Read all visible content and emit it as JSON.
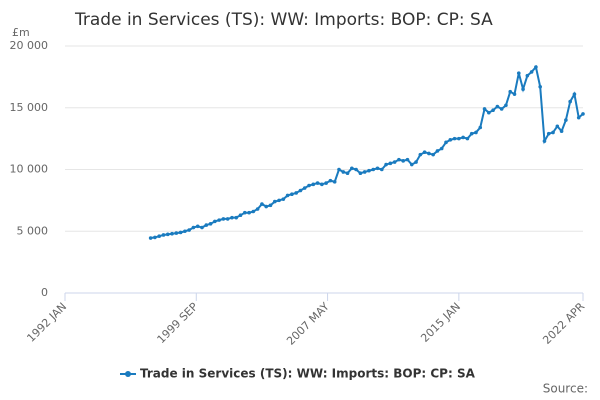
{
  "chart_data": {
    "type": "line",
    "title": "Trade in Services (TS): WW: Imports: BOP: CP: SA",
    "ylabel": "£m",
    "source": "Source:",
    "x": [
      1997,
      1997.25,
      1997.5,
      1997.75,
      1998,
      1998.25,
      1998.5,
      1998.75,
      1999,
      1999.25,
      1999.5,
      1999.75,
      2000,
      2000.25,
      2000.5,
      2000.75,
      2001,
      2001.25,
      2001.5,
      2001.75,
      2002,
      2002.25,
      2002.5,
      2002.75,
      2003,
      2003.25,
      2003.5,
      2003.75,
      2004,
      2004.25,
      2004.5,
      2004.75,
      2005,
      2005.25,
      2005.5,
      2005.75,
      2006,
      2006.25,
      2006.5,
      2006.75,
      2007,
      2007.25,
      2007.5,
      2007.75,
      2008,
      2008.25,
      2008.5,
      2008.75,
      2009,
      2009.25,
      2009.5,
      2009.75,
      2010,
      2010.25,
      2010.5,
      2010.75,
      2011,
      2011.25,
      2011.5,
      2011.75,
      2012,
      2012.25,
      2012.5,
      2012.75,
      2013,
      2013.25,
      2013.5,
      2013.75,
      2014,
      2014.25,
      2014.5,
      2014.75,
      2015,
      2015.25,
      2015.5,
      2015.75,
      2016,
      2016.25,
      2016.5,
      2016.75,
      2017,
      2017.25,
      2017.5,
      2017.75,
      2018,
      2018.25,
      2018.5,
      2018.75,
      2019,
      2019.25,
      2019.5,
      2019.75,
      2020,
      2020.25,
      2020.5,
      2020.75,
      2021,
      2021.25,
      2021.5,
      2021.75,
      2022,
      2022.25
    ],
    "series": [
      {
        "name": "Trade in Services (TS): WW: Imports: BOP: CP: SA",
        "color": "#1a7bbf",
        "values": [
          4450,
          4500,
          4600,
          4700,
          4750,
          4800,
          4850,
          4900,
          5000,
          5100,
          5300,
          5400,
          5300,
          5500,
          5600,
          5800,
          5900,
          6000,
          6000,
          6100,
          6100,
          6300,
          6500,
          6500,
          6600,
          6800,
          7200,
          7000,
          7100,
          7400,
          7500,
          7600,
          7900,
          8000,
          8100,
          8300,
          8500,
          8700,
          8800,
          8900,
          8800,
          8900,
          9100,
          9000,
          10000,
          9800,
          9700,
          10100,
          10000,
          9700,
          9800,
          9900,
          10000,
          10100,
          10000,
          10400,
          10500,
          10600,
          10800,
          10700,
          10800,
          10400,
          10600,
          11200,
          11400,
          11300,
          11200,
          11500,
          11700,
          12200,
          12400,
          12500,
          12500,
          12600,
          12500,
          12900,
          13000,
          13400,
          14900,
          14600,
          14800,
          15100,
          14900,
          15200,
          16300,
          16100,
          17800,
          16500,
          17600,
          17900,
          18300,
          16700,
          12300,
          12900,
          13000,
          13500,
          13100,
          14000,
          15500,
          16100,
          14200,
          14500
        ]
      }
    ],
    "xlim": [
      1992,
      2022.25
    ],
    "xticks": [
      {
        "value": 1992,
        "label": "1992 JAN"
      },
      {
        "value": 1999.667,
        "label": "1999 SEP"
      },
      {
        "value": 2007.333,
        "label": "2007 MAY"
      },
      {
        "value": 2015,
        "label": "2015 JAN"
      },
      {
        "value": 2022.25,
        "label": "2022 APR"
      }
    ],
    "ylim": [
      0,
      20000
    ],
    "yticks": [
      0,
      {
        "value": 5000,
        "label": "5 000"
      },
      {
        "value": 10000,
        "label": "10 000"
      },
      {
        "value": 15000,
        "label": "15 000"
      },
      {
        "value": 20000,
        "label": "20 000"
      }
    ],
    "grid": true
  }
}
